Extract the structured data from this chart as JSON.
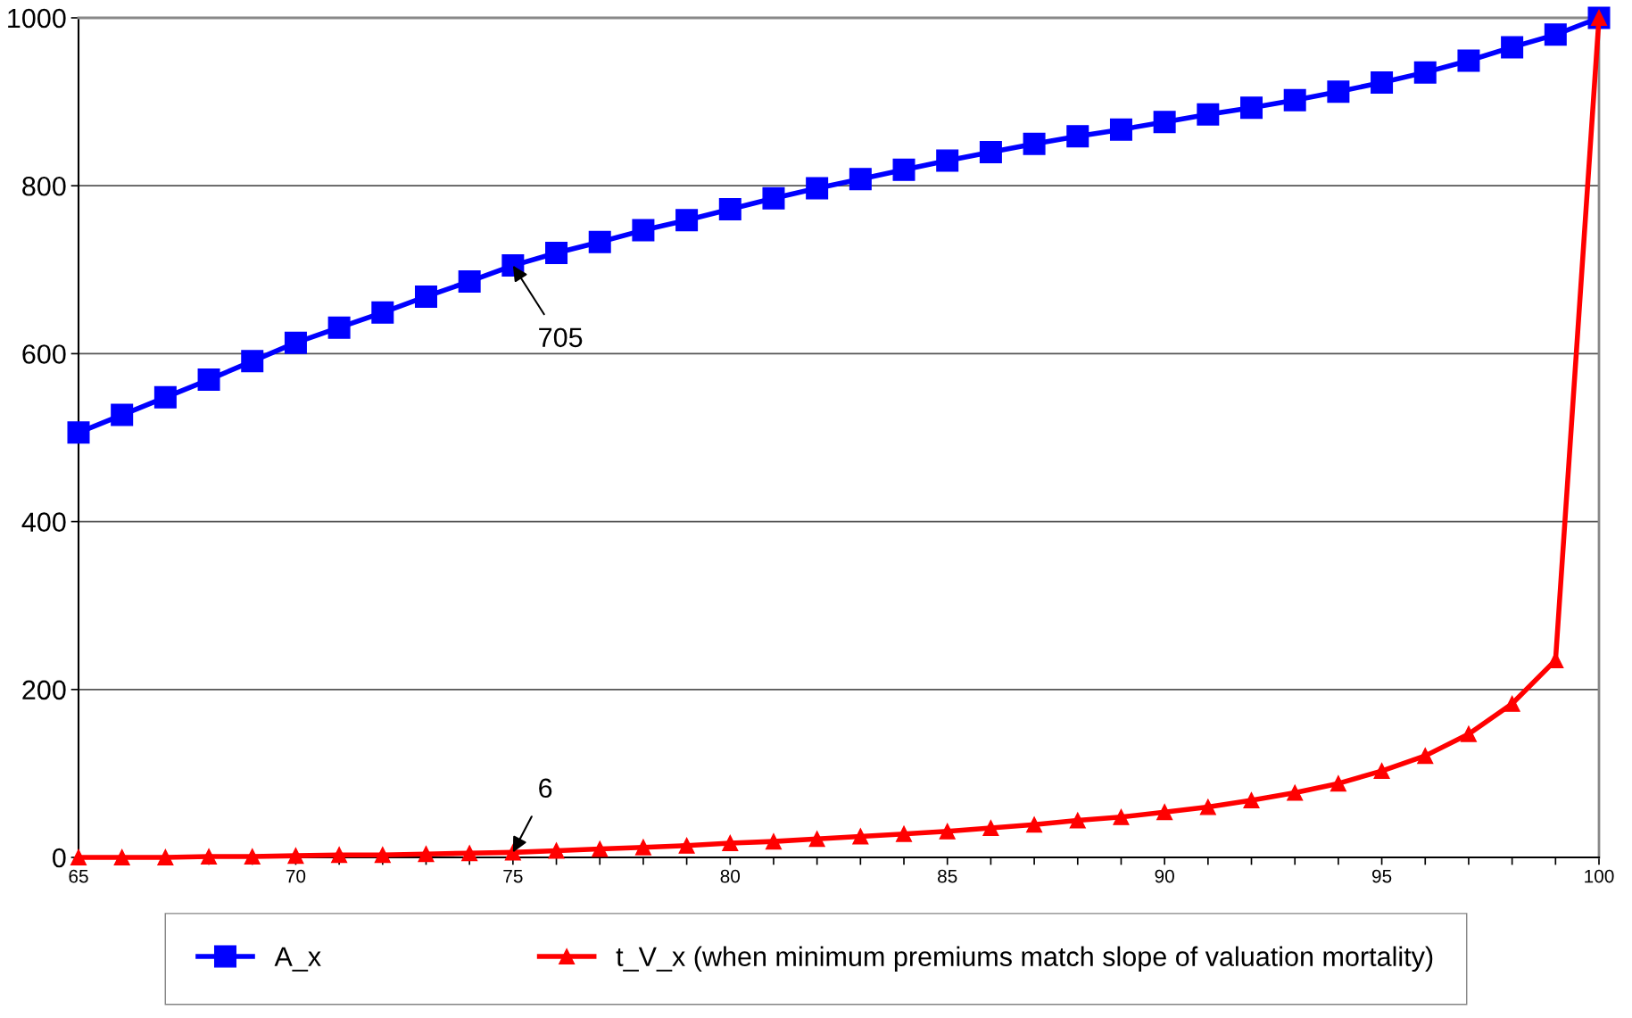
{
  "chart_data": {
    "type": "line",
    "x": [
      65,
      66,
      67,
      68,
      69,
      70,
      71,
      72,
      73,
      74,
      75,
      76,
      77,
      78,
      79,
      80,
      81,
      82,
      83,
      84,
      85,
      86,
      87,
      88,
      89,
      90,
      91,
      92,
      93,
      94,
      95,
      96,
      97,
      98,
      99,
      100
    ],
    "series": [
      {
        "name": "A_x",
        "color": "#0000ff",
        "marker": "square",
        "values": [
          506,
          527,
          548,
          569,
          591,
          613,
          631,
          649,
          668,
          686,
          705,
          720,
          733,
          747,
          759,
          772,
          785,
          797,
          808,
          819,
          830,
          840,
          850,
          859,
          867,
          876,
          885,
          893,
          902,
          912,
          923,
          935,
          949,
          965,
          980,
          1000
        ]
      },
      {
        "name": "t_V_x (when minimum premiums match slope of valuation mortality)",
        "color": "#ff0000",
        "marker": "triangle",
        "values": [
          0,
          0,
          0,
          1,
          1,
          2,
          3,
          3,
          4,
          5,
          6,
          8,
          10,
          12,
          14,
          17,
          19,
          22,
          25,
          28,
          31,
          35,
          39,
          44,
          48,
          54,
          60,
          68,
          77,
          88,
          103,
          121,
          147,
          183,
          235,
          1000
        ]
      }
    ],
    "xlim": [
      65,
      100
    ],
    "xticks": [
      65,
      {
        "value": 66,
        "label": null
      },
      {
        "value": 67,
        "label": null
      },
      {
        "value": 68,
        "label": null
      },
      {
        "value": 69,
        "label": null
      },
      70,
      {
        "value": 71,
        "label": null
      },
      {
        "value": 72,
        "label": null
      },
      {
        "value": 73,
        "label": null
      },
      {
        "value": 74,
        "label": null
      },
      75,
      {
        "value": 76,
        "label": null
      },
      {
        "value": 77,
        "label": null
      },
      {
        "value": 78,
        "label": null
      },
      {
        "value": 79,
        "label": null
      },
      80,
      {
        "value": 81,
        "label": null
      },
      {
        "value": 82,
        "label": null
      },
      {
        "value": 83,
        "label": null
      },
      {
        "value": 84,
        "label": null
      },
      85,
      {
        "value": 86,
        "label": null
      },
      {
        "value": 87,
        "label": null
      },
      {
        "value": 88,
        "label": null
      },
      {
        "value": 89,
        "label": null
      },
      90,
      {
        "value": 91,
        "label": null
      },
      {
        "value": 92,
        "label": null
      },
      {
        "value": 93,
        "label": null
      },
      {
        "value": 94,
        "label": null
      },
      95,
      {
        "value": 96,
        "label": null
      },
      {
        "value": 97,
        "label": null
      },
      {
        "value": 98,
        "label": null
      },
      {
        "value": 99,
        "label": null
      },
      100
    ],
    "ylim": [
      0,
      1000
    ],
    "yticks": [
      0,
      200,
      400,
      600,
      800,
      1000
    ],
    "grid": "y",
    "legend": "bottom",
    "line_style": "solid",
    "annotations": [
      {
        "text": "705",
        "x": 75,
        "y": 705
      },
      {
        "text": "6",
        "x": 75,
        "y": 6
      }
    ]
  }
}
